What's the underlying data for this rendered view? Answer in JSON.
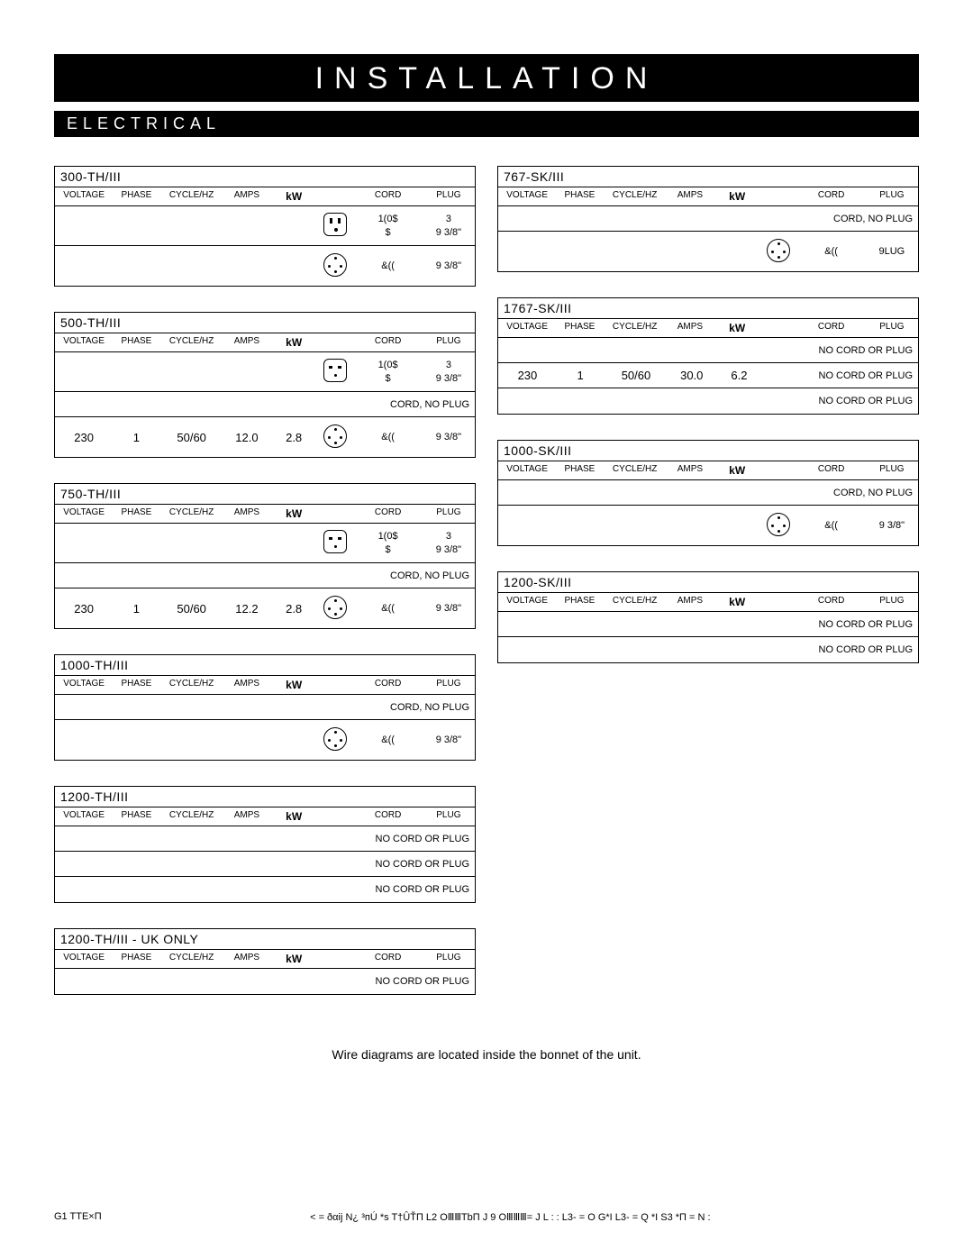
{
  "title": "INSTALLATION",
  "section": "ELECTRICAL",
  "headers": {
    "voltage": "VOLTAGE",
    "phase": "PHASE",
    "cycle": "CYCLE/HZ",
    "amps": "AMPS",
    "kw": "kW",
    "cord": "CORD",
    "plug": "PLUG"
  },
  "note": "Wire diagrams are located inside the bonnet of the unit.",
  "footer_left": "G1 TTE×П",
  "footer_center": "< = ðαij N¿ ³пÚ  *s T†ÛŤП L2 OⅢⅢTbП J  9 OⅢⅢⅢ= J L  : :   L3‐ = O   G*I   L3‐ = Q   *I S3 *П   = N  :",
  "left_tables": [
    {
      "model": "300-TH/III",
      "rows": [
        {
          "voltage": "",
          "phase": "",
          "cycle": "",
          "amps": "",
          "kw": "",
          "icon": "a",
          "cord": "1(0$\n$",
          "plug": "3\n9 3/8\""
        },
        {
          "voltage": "",
          "phase": "",
          "cycle": "",
          "amps": "",
          "kw": "",
          "icon": "c",
          "cord": "&((",
          "plug": "9 3/8\""
        }
      ]
    },
    {
      "model": "500-TH/III",
      "rows": [
        {
          "voltage": "",
          "phase": "",
          "cycle": "",
          "amps": "",
          "kw": "",
          "icon": "b",
          "cord": "1(0$\n$",
          "plug": "3\n9 3/8\""
        },
        {
          "voltage": "",
          "phase": "",
          "cycle": "",
          "amps": "",
          "kw": "",
          "rspan": "CORD, NO PLUG"
        },
        {
          "voltage": "230",
          "phase": "1",
          "cycle": "50/60",
          "amps": "12.0",
          "kw": "2.8",
          "icon": "c",
          "cord": "&((",
          "plug": "9 3/8\""
        }
      ]
    },
    {
      "model": "750-TH/III",
      "rows": [
        {
          "voltage": "",
          "phase": "",
          "cycle": "",
          "amps": "",
          "kw": "",
          "icon": "b",
          "cord": "1(0$\n$",
          "plug": "3\n9 3/8\""
        },
        {
          "voltage": "",
          "phase": "",
          "cycle": "",
          "amps": "",
          "kw": "",
          "rspan": "CORD, NO PLUG"
        },
        {
          "voltage": "230",
          "phase": "1",
          "cycle": "50/60",
          "amps": "12.2",
          "kw": "2.8",
          "icon": "c",
          "cord": "&((",
          "plug": "9 3/8\""
        }
      ]
    },
    {
      "model": "1000-TH/III",
      "rows": [
        {
          "voltage": "",
          "phase": "",
          "cycle": "",
          "amps": "",
          "kw": "",
          "rspan": "CORD, NO PLUG"
        },
        {
          "voltage": "",
          "phase": "",
          "cycle": "",
          "amps": "",
          "kw": "",
          "icon": "c",
          "cord": "&((",
          "plug": "9 3/8\""
        }
      ]
    },
    {
      "model": "1200-TH/III",
      "rows": [
        {
          "voltage": "",
          "phase": "",
          "cycle": "",
          "amps": "",
          "kw": "",
          "rspan": "NO CORD OR PLUG"
        },
        {
          "voltage": "",
          "phase": "",
          "cycle": "",
          "amps": "",
          "kw": "",
          "rspan": "NO CORD OR PLUG"
        },
        {
          "voltage": "",
          "phase": "",
          "cycle": "",
          "amps": "",
          "kw": "",
          "rspan": "NO CORD OR PLUG"
        }
      ]
    },
    {
      "model": "1200-TH/III - UK ONLY",
      "rows": [
        {
          "voltage": "",
          "phase": "",
          "cycle": "",
          "amps": "",
          "kw": "",
          "rspan": "NO CORD OR PLUG"
        }
      ]
    }
  ],
  "right_tables": [
    {
      "model": "767-SK/III",
      "rows": [
        {
          "voltage": "",
          "phase": "",
          "cycle": "",
          "amps": "",
          "kw": "",
          "rspan": "CORD, NO PLUG"
        },
        {
          "voltage": "",
          "phase": "",
          "cycle": "",
          "amps": "",
          "kw": "",
          "icon": "c",
          "cord": "&((",
          "plug": "9LUG"
        }
      ]
    },
    {
      "model": "1767-SK/III",
      "rows": [
        {
          "voltage": "",
          "phase": "",
          "cycle": "",
          "amps": "",
          "kw": "",
          "rspan": "NO CORD OR PLUG"
        },
        {
          "voltage": "230",
          "phase": "1",
          "cycle": "50/60",
          "amps": "30.0",
          "kw": "6.2",
          "rspan": "NO CORD OR PLUG"
        },
        {
          "voltage": "",
          "phase": "",
          "cycle": "",
          "amps": "",
          "kw": "",
          "rspan": "NO CORD OR PLUG"
        }
      ]
    },
    {
      "model": "1000-SK/III",
      "rows": [
        {
          "voltage": "",
          "phase": "",
          "cycle": "",
          "amps": "",
          "kw": "",
          "rspan": "CORD, NO PLUG"
        },
        {
          "voltage": "",
          "phase": "",
          "cycle": "",
          "amps": "",
          "kw": "",
          "icon": "c",
          "cord": "&((",
          "plug": "9 3/8\""
        }
      ]
    },
    {
      "model": "1200-SK/III",
      "rows": [
        {
          "voltage": "",
          "phase": "",
          "cycle": "",
          "amps": "",
          "kw": "",
          "rspan": "NO CORD OR PLUG"
        },
        {
          "voltage": "",
          "phase": "",
          "cycle": "",
          "amps": "",
          "kw": "",
          "rspan": "NO CORD OR PLUG"
        }
      ]
    }
  ]
}
